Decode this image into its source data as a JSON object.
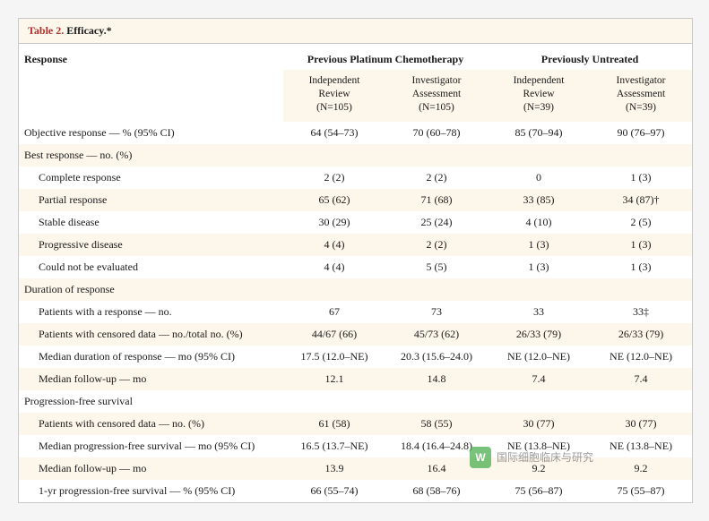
{
  "title": {
    "number": "Table 2.",
    "text": "Efficacy.*"
  },
  "header": {
    "response": "Response",
    "group1": "Previous Platinum Chemotherapy",
    "group2": "Previously Untreated",
    "sub": {
      "g1_ir": "Independent\nReview\n(N=105)",
      "g1_ia": "Investigator\nAssessment\n(N=105)",
      "g2_ir": "Independent\nReview\n(N=39)",
      "g2_ia": "Investigator\nAssessment\n(N=39)"
    }
  },
  "rows": [
    {
      "label": "Objective response — % (95% CI)",
      "indent": false,
      "v": [
        "64 (54–73)",
        "70 (60–78)",
        "85 (70–94)",
        "90 (76–97)"
      ]
    },
    {
      "label": "Best response — no. (%)",
      "indent": false,
      "v": [
        "",
        "",
        "",
        ""
      ]
    },
    {
      "label": "Complete response",
      "indent": true,
      "v": [
        "2 (2)",
        "2 (2)",
        "0",
        "1 (3)"
      ]
    },
    {
      "label": "Partial response",
      "indent": true,
      "v": [
        "65 (62)",
        "71 (68)",
        "33 (85)",
        "34 (87)†"
      ]
    },
    {
      "label": "Stable disease",
      "indent": true,
      "v": [
        "30 (29)",
        "25 (24)",
        "4 (10)",
        "2 (5)"
      ]
    },
    {
      "label": "Progressive disease",
      "indent": true,
      "v": [
        "4 (4)",
        "2 (2)",
        "1 (3)",
        "1 (3)"
      ]
    },
    {
      "label": "Could not be evaluated",
      "indent": true,
      "v": [
        "4 (4)",
        "5 (5)",
        "1 (3)",
        "1 (3)"
      ]
    },
    {
      "label": "Duration of response",
      "indent": false,
      "v": [
        "",
        "",
        "",
        ""
      ]
    },
    {
      "label": "Patients with a response — no.",
      "indent": true,
      "v": [
        "67",
        "73",
        "33",
        "33‡"
      ]
    },
    {
      "label": "Patients with censored data — no./total no. (%)",
      "indent": true,
      "v": [
        "44/67 (66)",
        "45/73 (62)",
        "26/33 (79)",
        "26/33 (79)"
      ]
    },
    {
      "label": "Median duration of response — mo (95% CI)",
      "indent": true,
      "v": [
        "17.5 (12.0–NE)",
        "20.3 (15.6–24.0)",
        "NE (12.0–NE)",
        "NE (12.0–NE)"
      ]
    },
    {
      "label": "Median follow-up — mo",
      "indent": true,
      "v": [
        "12.1",
        "14.8",
        "7.4",
        "7.4"
      ]
    },
    {
      "label": "Progression-free survival",
      "indent": false,
      "v": [
        "",
        "",
        "",
        ""
      ]
    },
    {
      "label": "Patients with censored data — no. (%)",
      "indent": true,
      "v": [
        "61 (58)",
        "58 (55)",
        "30 (77)",
        "30 (77)"
      ]
    },
    {
      "label": "Median progression-free survival — mo (95% CI)",
      "indent": true,
      "v": [
        "16.5 (13.7–NE)",
        "18.4 (16.4–24.8)",
        "NE (13.8–NE)",
        "NE (13.8–NE)"
      ]
    },
    {
      "label": "Median follow-up — mo",
      "indent": true,
      "v": [
        "13.9",
        "16.4",
        "9.2",
        "9.2"
      ]
    },
    {
      "label": "1-yr progression-free survival — % (95% CI)",
      "indent": true,
      "v": [
        "66 (55–74)",
        "68 (58–76)",
        "75 (56–87)",
        "75 (55–87)"
      ]
    }
  ],
  "watermark": {
    "icon": "W",
    "text": "国际细胞临床与研究"
  },
  "colors": {
    "tint": "#fdf6ea",
    "border": "#c8c8c8",
    "titleRed": "#b4302e"
  }
}
